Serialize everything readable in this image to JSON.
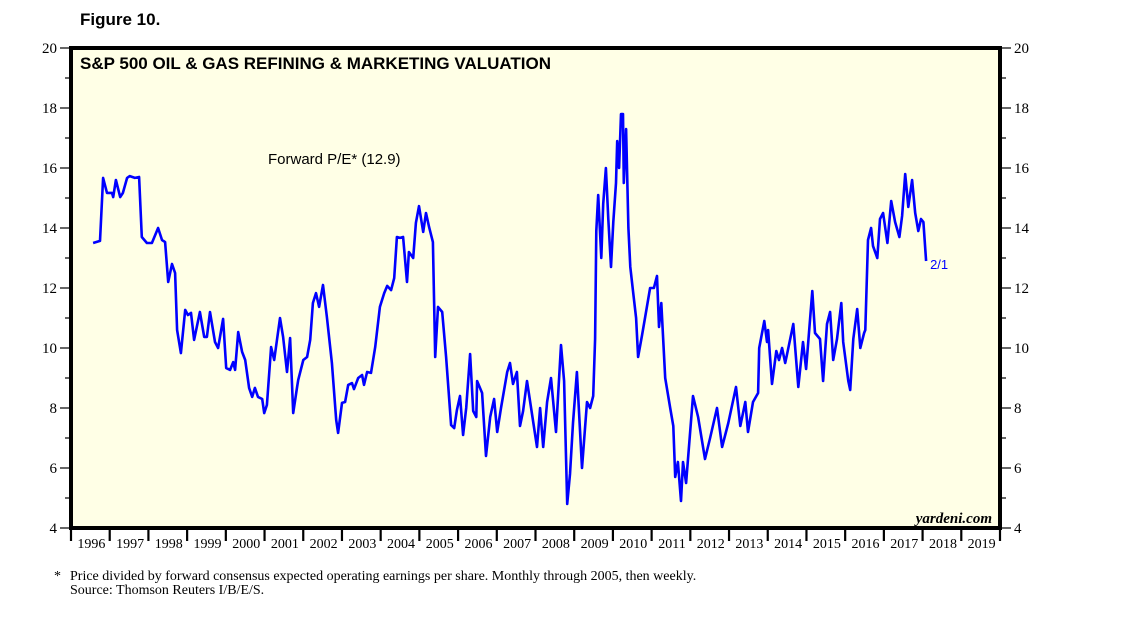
{
  "figure_label": "Figure 10.",
  "footnote": {
    "marker": "*",
    "line1": "Price divided by forward consensus expected operating earnings per share. Monthly through 2005, then weekly.",
    "line2": "Source: Thomson Reuters I/B/E/S."
  },
  "colors": {
    "plot_background": "#ffffe6",
    "series": "#0000ff",
    "frame": "#000000"
  },
  "chart_data": {
    "type": "line",
    "title": "S&P 500 OIL & GAS REFINING & MARKETING VALUATION",
    "xlabel": "",
    "ylabel": "",
    "xlim": [
      1996,
      2020
    ],
    "ylim": [
      4,
      20
    ],
    "grid": false,
    "y_ticks": [
      4,
      6,
      8,
      10,
      12,
      14,
      16,
      18,
      20
    ],
    "y_minor_ticks": [
      5,
      7,
      9,
      11,
      13,
      15,
      17,
      19
    ],
    "y_axis_sides": [
      "left",
      "right"
    ],
    "x_tick_labels": [
      "1996",
      "1997",
      "1998",
      "1999",
      "2000",
      "2001",
      "2002",
      "2003",
      "2004",
      "2005",
      "2006",
      "2007",
      "2008",
      "2009",
      "2010",
      "2011",
      "2012",
      "2013",
      "2014",
      "2015",
      "2016",
      "2017",
      "2018",
      "2019"
    ],
    "watermark": "yardeni.com",
    "annotations": [
      {
        "text": "Forward P/E* (12.9)",
        "type": "series-label"
      },
      {
        "text": "2/1",
        "type": "last-value-date",
        "x": 2018.09,
        "y": 12.9
      }
    ],
    "series": [
      {
        "name": "Forward P/E*",
        "last_value": 12.9,
        "points": [
          [
            1996.57,
            13.5
          ],
          [
            1996.75,
            13.57
          ],
          [
            1996.83,
            15.67
          ],
          [
            1996.93,
            15.17
          ],
          [
            1997.06,
            15.17
          ],
          [
            1997.09,
            15.03
          ],
          [
            1997.16,
            15.6
          ],
          [
            1997.27,
            15.03
          ],
          [
            1997.34,
            15.17
          ],
          [
            1997.45,
            15.67
          ],
          [
            1997.52,
            15.73
          ],
          [
            1997.65,
            15.67
          ],
          [
            1997.76,
            15.7
          ],
          [
            1997.83,
            13.7
          ],
          [
            1997.96,
            13.5
          ],
          [
            1998.09,
            13.5
          ],
          [
            1998.25,
            14.0
          ],
          [
            1998.35,
            13.6
          ],
          [
            1998.43,
            13.53
          ],
          [
            1998.51,
            12.2
          ],
          [
            1998.61,
            12.8
          ],
          [
            1998.69,
            12.5
          ],
          [
            1998.74,
            10.6
          ],
          [
            1998.84,
            9.83
          ],
          [
            1998.95,
            11.27
          ],
          [
            1999.02,
            11.1
          ],
          [
            1999.1,
            11.17
          ],
          [
            1999.18,
            10.27
          ],
          [
            1999.33,
            11.2
          ],
          [
            1999.44,
            10.37
          ],
          [
            1999.51,
            10.37
          ],
          [
            1999.59,
            11.2
          ],
          [
            1999.72,
            10.2
          ],
          [
            1999.8,
            10.0
          ],
          [
            1999.93,
            10.97
          ],
          [
            2000.01,
            9.33
          ],
          [
            2000.11,
            9.27
          ],
          [
            2000.19,
            9.53
          ],
          [
            2000.24,
            9.27
          ],
          [
            2000.32,
            10.53
          ],
          [
            2000.42,
            9.87
          ],
          [
            2000.5,
            9.6
          ],
          [
            2000.6,
            8.67
          ],
          [
            2000.68,
            8.37
          ],
          [
            2000.75,
            8.67
          ],
          [
            2000.83,
            8.37
          ],
          [
            2000.94,
            8.3
          ],
          [
            2000.99,
            7.83
          ],
          [
            2001.06,
            8.1
          ],
          [
            2001.17,
            10.03
          ],
          [
            2001.25,
            9.6
          ],
          [
            2001.4,
            11.0
          ],
          [
            2001.48,
            10.37
          ],
          [
            2001.58,
            9.2
          ],
          [
            2001.66,
            10.33
          ],
          [
            2001.74,
            7.83
          ],
          [
            2001.84,
            8.7
          ],
          [
            2001.87,
            8.93
          ],
          [
            2002.0,
            9.6
          ],
          [
            2002.1,
            9.7
          ],
          [
            2002.18,
            10.27
          ],
          [
            2002.25,
            11.5
          ],
          [
            2002.33,
            11.83
          ],
          [
            2002.41,
            11.37
          ],
          [
            2002.51,
            12.1
          ],
          [
            2002.61,
            11.03
          ],
          [
            2002.74,
            9.5
          ],
          [
            2002.85,
            7.6
          ],
          [
            2002.9,
            7.17
          ],
          [
            2003.0,
            8.17
          ],
          [
            2003.08,
            8.2
          ],
          [
            2003.16,
            8.77
          ],
          [
            2003.26,
            8.83
          ],
          [
            2003.31,
            8.63
          ],
          [
            2003.42,
            9.0
          ],
          [
            2003.52,
            9.1
          ],
          [
            2003.57,
            8.77
          ],
          [
            2003.65,
            9.2
          ],
          [
            2003.75,
            9.17
          ],
          [
            2003.86,
            10.03
          ],
          [
            2003.98,
            11.37
          ],
          [
            2004.09,
            11.83
          ],
          [
            2004.17,
            12.07
          ],
          [
            2004.27,
            11.93
          ],
          [
            2004.35,
            12.33
          ],
          [
            2004.42,
            13.7
          ],
          [
            2004.5,
            13.67
          ],
          [
            2004.58,
            13.7
          ],
          [
            2004.68,
            12.2
          ],
          [
            2004.73,
            13.2
          ],
          [
            2004.84,
            13.0
          ],
          [
            2004.91,
            14.17
          ],
          [
            2004.99,
            14.73
          ],
          [
            2005.1,
            13.87
          ],
          [
            2005.17,
            14.5
          ],
          [
            2005.25,
            14.03
          ],
          [
            2005.35,
            13.53
          ],
          [
            2005.41,
            9.7
          ],
          [
            2005.48,
            11.37
          ],
          [
            2005.59,
            11.2
          ],
          [
            2005.69,
            9.7
          ],
          [
            2005.82,
            7.43
          ],
          [
            2005.9,
            7.33
          ],
          [
            2005.97,
            7.93
          ],
          [
            2006.05,
            8.4
          ],
          [
            2006.13,
            7.1
          ],
          [
            2006.21,
            8.0
          ],
          [
            2006.31,
            9.8
          ],
          [
            2006.39,
            7.9
          ],
          [
            2006.47,
            7.7
          ],
          [
            2006.49,
            8.9
          ],
          [
            2006.62,
            8.5
          ],
          [
            2006.72,
            6.4
          ],
          [
            2006.83,
            7.7
          ],
          [
            2006.93,
            8.3
          ],
          [
            2007.01,
            7.2
          ],
          [
            2007.11,
            8.0
          ],
          [
            2007.27,
            9.2
          ],
          [
            2007.34,
            9.5
          ],
          [
            2007.42,
            8.8
          ],
          [
            2007.52,
            9.2
          ],
          [
            2007.6,
            7.4
          ],
          [
            2007.68,
            7.9
          ],
          [
            2007.78,
            8.9
          ],
          [
            2007.91,
            7.8
          ],
          [
            2008.04,
            6.7
          ],
          [
            2008.12,
            8.0
          ],
          [
            2008.2,
            6.7
          ],
          [
            2008.3,
            8.2
          ],
          [
            2008.4,
            9.0
          ],
          [
            2008.53,
            7.2
          ],
          [
            2008.66,
            10.1
          ],
          [
            2008.74,
            8.9
          ],
          [
            2008.82,
            4.8
          ],
          [
            2008.89,
            5.8
          ],
          [
            2008.97,
            7.5
          ],
          [
            2009.07,
            9.2
          ],
          [
            2009.2,
            6.0
          ],
          [
            2009.33,
            8.2
          ],
          [
            2009.41,
            8.0
          ],
          [
            2009.49,
            8.4
          ],
          [
            2009.54,
            10.3
          ],
          [
            2009.57,
            13.9
          ],
          [
            2009.62,
            15.1
          ],
          [
            2009.7,
            13.0
          ],
          [
            2009.75,
            14.8
          ],
          [
            2009.82,
            16.0
          ],
          [
            2009.88,
            14.3
          ],
          [
            2009.95,
            12.7
          ],
          [
            2010.01,
            14.2
          ],
          [
            2010.08,
            15.5
          ],
          [
            2010.11,
            16.9
          ],
          [
            2010.16,
            16.0
          ],
          [
            2010.21,
            17.8
          ],
          [
            2010.26,
            17.8
          ],
          [
            2010.28,
            15.5
          ],
          [
            2010.34,
            17.3
          ],
          [
            2010.4,
            14.0
          ],
          [
            2010.45,
            12.7
          ],
          [
            2010.52,
            11.9
          ],
          [
            2010.6,
            11.0
          ],
          [
            2010.65,
            9.7
          ],
          [
            2010.75,
            10.4
          ],
          [
            2010.83,
            11.0
          ],
          [
            2010.96,
            12.0
          ],
          [
            2011.06,
            12.0
          ],
          [
            2011.14,
            12.4
          ],
          [
            2011.19,
            10.7
          ],
          [
            2011.25,
            11.5
          ],
          [
            2011.35,
            9.0
          ],
          [
            2011.48,
            8.0
          ],
          [
            2011.56,
            7.4
          ],
          [
            2011.61,
            5.7
          ],
          [
            2011.68,
            6.2
          ],
          [
            2011.76,
            4.9
          ],
          [
            2011.81,
            6.2
          ],
          [
            2011.89,
            5.5
          ],
          [
            2011.94,
            6.3
          ],
          [
            2012.07,
            8.4
          ],
          [
            2012.2,
            7.7
          ],
          [
            2012.38,
            6.3
          ],
          [
            2012.51,
            7.0
          ],
          [
            2012.69,
            8.0
          ],
          [
            2012.82,
            6.7
          ],
          [
            2012.98,
            7.5
          ],
          [
            2013.18,
            8.7
          ],
          [
            2013.29,
            7.4
          ],
          [
            2013.42,
            8.2
          ],
          [
            2013.49,
            7.2
          ],
          [
            2013.62,
            8.2
          ],
          [
            2013.75,
            8.5
          ],
          [
            2013.78,
            10.0
          ],
          [
            2013.91,
            10.9
          ],
          [
            2013.98,
            10.2
          ],
          [
            2014.01,
            10.6
          ],
          [
            2014.11,
            8.8
          ],
          [
            2014.22,
            9.9
          ],
          [
            2014.29,
            9.6
          ],
          [
            2014.37,
            10.0
          ],
          [
            2014.45,
            9.5
          ],
          [
            2014.5,
            9.8
          ],
          [
            2014.66,
            10.8
          ],
          [
            2014.79,
            8.7
          ],
          [
            2014.91,
            10.2
          ],
          [
            2014.99,
            9.3
          ],
          [
            2015.15,
            11.9
          ],
          [
            2015.22,
            10.5
          ],
          [
            2015.35,
            10.3
          ],
          [
            2015.43,
            8.9
          ],
          [
            2015.53,
            10.8
          ],
          [
            2015.61,
            11.2
          ],
          [
            2015.69,
            9.6
          ],
          [
            2015.79,
            10.3
          ],
          [
            2015.9,
            11.5
          ],
          [
            2015.95,
            10.2
          ],
          [
            2016.08,
            8.9
          ],
          [
            2016.13,
            8.6
          ],
          [
            2016.21,
            10.3
          ],
          [
            2016.31,
            11.3
          ],
          [
            2016.39,
            10.0
          ],
          [
            2016.49,
            10.5
          ],
          [
            2016.52,
            10.6
          ],
          [
            2016.59,
            13.6
          ],
          [
            2016.67,
            14.0
          ],
          [
            2016.72,
            13.4
          ],
          [
            2016.83,
            13.0
          ],
          [
            2016.9,
            14.3
          ],
          [
            2016.98,
            14.5
          ],
          [
            2017.09,
            13.5
          ],
          [
            2017.19,
            14.9
          ],
          [
            2017.29,
            14.2
          ],
          [
            2017.4,
            13.7
          ],
          [
            2017.47,
            14.4
          ],
          [
            2017.55,
            15.8
          ],
          [
            2017.63,
            14.7
          ],
          [
            2017.73,
            15.6
          ],
          [
            2017.81,
            14.5
          ],
          [
            2017.89,
            13.9
          ],
          [
            2017.96,
            14.3
          ],
          [
            2018.02,
            14.2
          ],
          [
            2018.09,
            12.9
          ]
        ]
      }
    ]
  }
}
